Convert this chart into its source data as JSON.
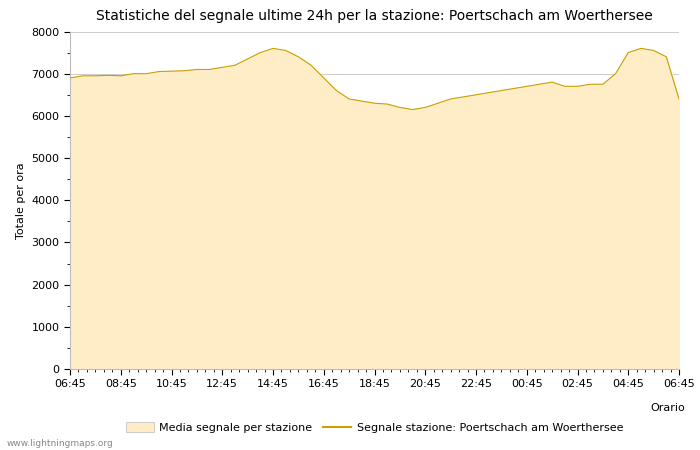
{
  "title": "Statistiche del segnale ultime 24h per la stazione: Poertschach am Woerthersee",
  "xlabel": "Orario",
  "ylabel": "Totale per ora",
  "watermark": "www.lightningmaps.org",
  "legend_fill_label": "Media segnale per stazione",
  "legend_line_label": "Segnale stazione: Poertschach am Woerthersee",
  "fill_color": "#FFEDC8",
  "line_color": "#C8A000",
  "background_color": "#FFFFFF",
  "ylim": [
    0,
    8000
  ],
  "yticks": [
    0,
    1000,
    2000,
    3000,
    4000,
    5000,
    6000,
    7000,
    8000
  ],
  "xtick_labels": [
    "06:45",
    "08:45",
    "10:45",
    "12:45",
    "14:45",
    "16:45",
    "18:45",
    "20:45",
    "22:45",
    "00:45",
    "02:45",
    "04:45",
    "06:45"
  ],
  "x_values": [
    0,
    1,
    2,
    3,
    4,
    5,
    6,
    7,
    8,
    9,
    10,
    11,
    12,
    13,
    14,
    15,
    16,
    17,
    18,
    19,
    20,
    21,
    22,
    23,
    24,
    25,
    26,
    27,
    28,
    29,
    30,
    31,
    32,
    33,
    34,
    35,
    36,
    37,
    38,
    39,
    40,
    41,
    42,
    43,
    44,
    45,
    46,
    47,
    48
  ],
  "y_values": [
    6900,
    6950,
    6950,
    6960,
    6950,
    7000,
    7000,
    7050,
    7060,
    7070,
    7100,
    7100,
    7150,
    7200,
    7350,
    7500,
    7600,
    7550,
    7400,
    7200,
    6900,
    6600,
    6400,
    6350,
    6300,
    6280,
    6200,
    6150,
    6200,
    6300,
    6400,
    6450,
    6500,
    6550,
    6600,
    6650,
    6700,
    6750,
    6800,
    6700,
    6700,
    6750,
    6750,
    7000,
    7500,
    7600,
    7550,
    7400,
    6400
  ],
  "title_fontsize": 10,
  "label_fontsize": 8,
  "tick_fontsize": 8,
  "grid_color": "#CCCCCC",
  "grid_linewidth": 0.7,
  "figwidth": 7.0,
  "figheight": 4.5,
  "dpi": 100
}
